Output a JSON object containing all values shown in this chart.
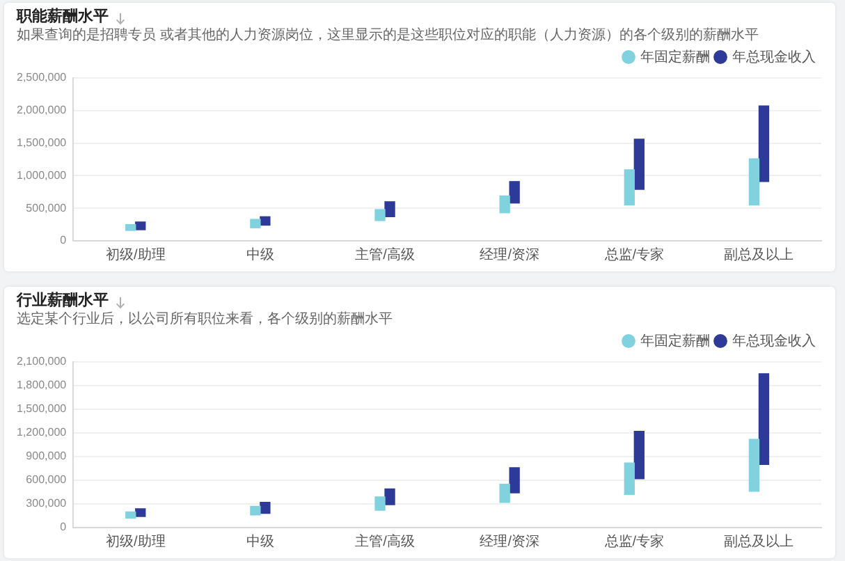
{
  "chart_data": [
    {
      "type": "bar",
      "title": "职能薪酬水平",
      "subtitle": "如果查询的是招聘专员 或者其他的人力资源岗位，这里显示的是这些职位对应的职能（人力资源）的各个级别的薪酬水平",
      "categories": [
        "初级/助理",
        "中级",
        "主管/高级",
        "经理/资深",
        "总监/专家",
        "副总及以上"
      ],
      "series": [
        {
          "name": "年固定薪酬",
          "color": "#7fd2de",
          "base": [
            160000,
            200000,
            310000,
            430000,
            550000,
            550000
          ],
          "values": [
            90000,
            130000,
            170000,
            260000,
            540000,
            710000
          ]
        },
        {
          "name": "年总现金收入",
          "color": "#2e3a98",
          "base": [
            170000,
            240000,
            370000,
            580000,
            790000,
            910000
          ],
          "values": [
            120000,
            130000,
            230000,
            330000,
            770000,
            1160000
          ]
        }
      ],
      "ylim": [
        0,
        2500000
      ],
      "yticks": [
        0,
        {
          "value": 500000,
          "label": "500,000"
        },
        {
          "value": 1000000,
          "label": "1,000,000"
        },
        {
          "value": 1500000,
          "label": "1,500,000"
        },
        {
          "value": 2000000,
          "label": "2,000,000"
        },
        {
          "value": 2500000,
          "label": "2,500,000"
        }
      ],
      "grid": "y",
      "legend": "top right"
    },
    {
      "type": "bar",
      "title": "行业薪酬水平",
      "subtitle": "选定某个行业后，以公司所有职位来看，各个级别的薪酬水平",
      "categories": [
        "初级/助理",
        "中级",
        "主管/高级",
        "经理/资深",
        "总监/专家",
        "副总及以上"
      ],
      "series": [
        {
          "name": "年固定薪酬",
          "color": "#7fd2de",
          "base": [
            120000,
            160000,
            220000,
            320000,
            420000,
            460000
          ],
          "values": [
            80000,
            110000,
            170000,
            230000,
            400000,
            660000
          ]
        },
        {
          "name": "年总现金收入",
          "color": "#2e3a98",
          "base": [
            140000,
            180000,
            290000,
            440000,
            620000,
            800000
          ],
          "values": [
            100000,
            140000,
            200000,
            320000,
            600000,
            1150000
          ]
        }
      ],
      "ylim": [
        0,
        2100000
      ],
      "yticks": [
        0,
        {
          "value": 300000,
          "label": "300,000"
        },
        {
          "value": 600000,
          "label": "600,000"
        },
        {
          "value": 900000,
          "label": "900,000"
        },
        {
          "value": 1200000,
          "label": "1,200,000"
        },
        {
          "value": 1500000,
          "label": "1,500,000"
        },
        {
          "value": 1800000,
          "label": "1,800,000"
        },
        {
          "value": 2100000,
          "label": "2,100,000"
        }
      ],
      "grid": "y",
      "legend": "top right"
    }
  ]
}
